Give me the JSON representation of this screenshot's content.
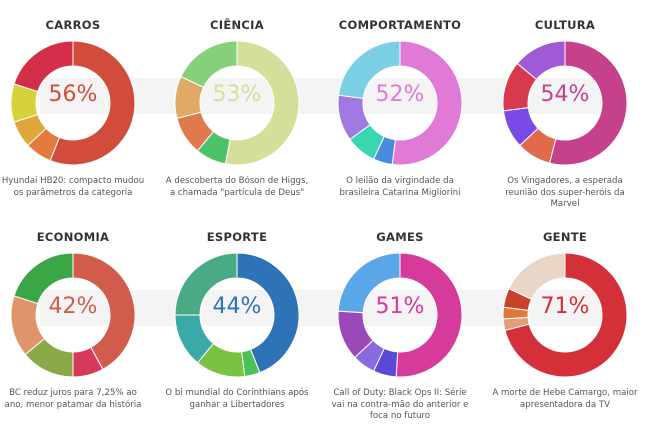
{
  "chart_data": [
    {
      "type": "pie",
      "title": "CARROS",
      "highlight": "56%",
      "caption": "Hyundai HB20: compacto mudou os parâmetros da categoria",
      "slices": [
        {
          "value": 56,
          "color": "#d24c3c"
        },
        {
          "value": 7,
          "color": "#e57a3c"
        },
        {
          "value": 7,
          "color": "#e0a63a"
        },
        {
          "value": 10,
          "color": "#d8d23a"
        },
        {
          "value": 20,
          "color": "#d42f48"
        }
      ]
    },
    {
      "type": "pie",
      "title": "CIÊNCIA",
      "highlight": "53%",
      "caption": "A descoberta do Bóson de Higgs, a chamada \"partícula de Deus\"",
      "slices": [
        {
          "value": 53,
          "color": "#d6df9a"
        },
        {
          "value": 8,
          "color": "#4cc26a"
        },
        {
          "value": 10,
          "color": "#e07a4c"
        },
        {
          "value": 11,
          "color": "#e0aa66"
        },
        {
          "value": 18,
          "color": "#86d07a"
        }
      ]
    },
    {
      "type": "pie",
      "title": "COMPORTAMENTO",
      "highlight": "52%",
      "caption": "O leilão da virgindade da brasileira Catarina Migliorini",
      "slices": [
        {
          "value": 52,
          "color": "#e07ad6"
        },
        {
          "value": 5,
          "color": "#4a8be0"
        },
        {
          "value": 8,
          "color": "#3ad6b2"
        },
        {
          "value": 12,
          "color": "#a07ae0"
        },
        {
          "value": 23,
          "color": "#7acfe4"
        }
      ]
    },
    {
      "type": "pie",
      "title": "CULTURA",
      "highlight": "54%",
      "caption": "Os Vingadores, a esperada reunião dos super-heróis da Marvel",
      "slices": [
        {
          "value": 54,
          "color": "#c6418c"
        },
        {
          "value": 9,
          "color": "#e06a4a"
        },
        {
          "value": 10,
          "color": "#7a4ae8"
        },
        {
          "value": 13,
          "color": "#d63a4c"
        },
        {
          "value": 14,
          "color": "#a05ad6"
        }
      ]
    },
    {
      "type": "pie",
      "title": "ECONOMIA",
      "highlight": "42%",
      "caption": "BC reduz juros para 7,25% ao ano, menor patamar da história",
      "slices": [
        {
          "value": 42,
          "color": "#d25c4c"
        },
        {
          "value": 8,
          "color": "#d63a5a"
        },
        {
          "value": 14,
          "color": "#8aaa4a"
        },
        {
          "value": 16,
          "color": "#e0946a"
        },
        {
          "value": 20,
          "color": "#3aa646"
        }
      ]
    },
    {
      "type": "pie",
      "title": "ESPORTE",
      "highlight": "44%",
      "caption": "O bi mundial do Corinthians após ganhar a Libertadores",
      "slices": [
        {
          "value": 44,
          "color": "#2e72b8"
        },
        {
          "value": 4,
          "color": "#4ac25a"
        },
        {
          "value": 13,
          "color": "#7ac242"
        },
        {
          "value": 14,
          "color": "#3aaaa6"
        },
        {
          "value": 25,
          "color": "#4aaa86"
        }
      ]
    },
    {
      "type": "pie",
      "title": "GAMES",
      "highlight": "51%",
      "caption": "Call of Duty: Black Ops II: Série vai na contra-mão do anterior e foca no futuro",
      "slices": [
        {
          "value": 51,
          "color": "#d63a9a"
        },
        {
          "value": 6,
          "color": "#5a4ad6"
        },
        {
          "value": 6,
          "color": "#8a6ae0"
        },
        {
          "value": 13,
          "color": "#9a4ab8"
        },
        {
          "value": 24,
          "color": "#5aa6e8"
        }
      ]
    },
    {
      "type": "pie",
      "title": "GENTE",
      "highlight": "71%",
      "caption": "A morte de Hebe Camargo, maior apresentadora da TV",
      "slices": [
        {
          "value": 71,
          "color": "#d4303a"
        },
        {
          "value": 3,
          "color": "#e0a07a"
        },
        {
          "value": 3,
          "color": "#e0783a"
        },
        {
          "value": 5,
          "color": "#c8432e"
        },
        {
          "value": 18,
          "color": "#ead6c6"
        }
      ]
    }
  ]
}
